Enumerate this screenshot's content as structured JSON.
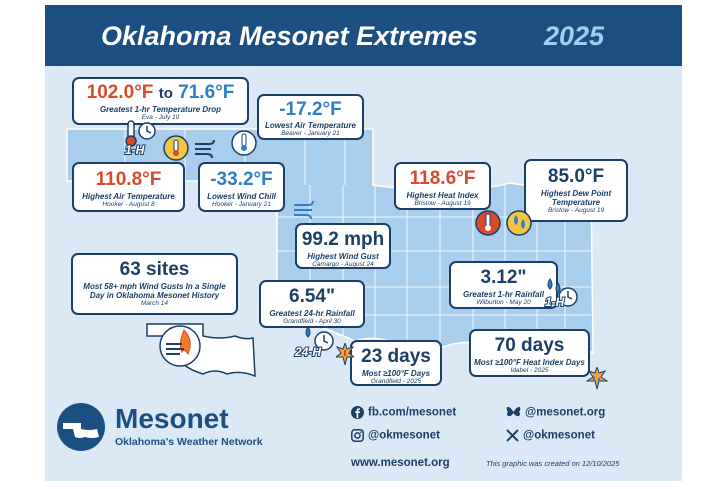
{
  "header": {
    "title": "Oklahoma Mesonet Extremes",
    "year": "2025"
  },
  "cards": {
    "temp_drop": {
      "high": "102.0°F",
      "to": "to",
      "low": "71.6°F",
      "label": "Greatest 1-hr Temperature Drop",
      "sub": "Eva - July 10"
    },
    "low_air": {
      "value": "-17.2°F",
      "label": "Lowest Air Temperature",
      "sub": "Beaver - January 21"
    },
    "high_air": {
      "value": "110.8°F",
      "label": "Highest Air Temperature",
      "sub": "Hooker - August 8"
    },
    "wind_chill": {
      "value": "-33.2°F",
      "label": "Lowest Wind Chill",
      "sub": "Hooker - January 21"
    },
    "heat_index": {
      "value": "118.6°F",
      "label": "Highest Heat Index",
      "sub": "Bristow - August 19"
    },
    "dew_point": {
      "value": "85.0°F",
      "label": "Highest Dew Point Temperature",
      "sub": "Bristow - August 19"
    },
    "wind_gust": {
      "value": "99.2 mph",
      "label": "Highest Wind Gust",
      "sub": "Camargo - August 24"
    },
    "gusts_sites": {
      "value": "63 sites",
      "label": "Most 58+ mph Wind Gusts In a Single Day in Oklahoma Mesonet History",
      "sub": "March 14"
    },
    "rain_1hr": {
      "value": "3.12\"",
      "label": "Greatest 1-hr Rainfall",
      "sub": "Wilburton - May 20"
    },
    "rain_24hr": {
      "value": "6.54\"",
      "label": "Greatest 24-hr Rainfall",
      "sub": "Grandfield - April 30"
    },
    "days_100": {
      "value": "23 days",
      "label": "Most ≥100°F Days",
      "sub": "Grandfield - 2025"
    },
    "heat_days": {
      "value": "70 days",
      "label": "Most ≥100°F Heat Index Days",
      "sub": "Idabel - 2025"
    }
  },
  "icon_text": {
    "one_h": "1-H",
    "twentyfour_h": "24-H"
  },
  "logo": {
    "name": "Mesonet",
    "tagline": "Oklahoma's Weather Network"
  },
  "social": {
    "facebook": "fb.com/mesonet",
    "instagram": "@okmesonet",
    "bluesky": "@mesonet.org",
    "x": "@okmesonet"
  },
  "website": "www.mesonet.org",
  "created_note": "This graphic was created on 12/10/2025",
  "colors": {
    "navy": "#1b4f82",
    "dark": "#1b3f66",
    "red": "#d84a2b",
    "blue": "#2f7fc6",
    "map_fill": "#a9cdec",
    "background": "#dbe9f6"
  }
}
